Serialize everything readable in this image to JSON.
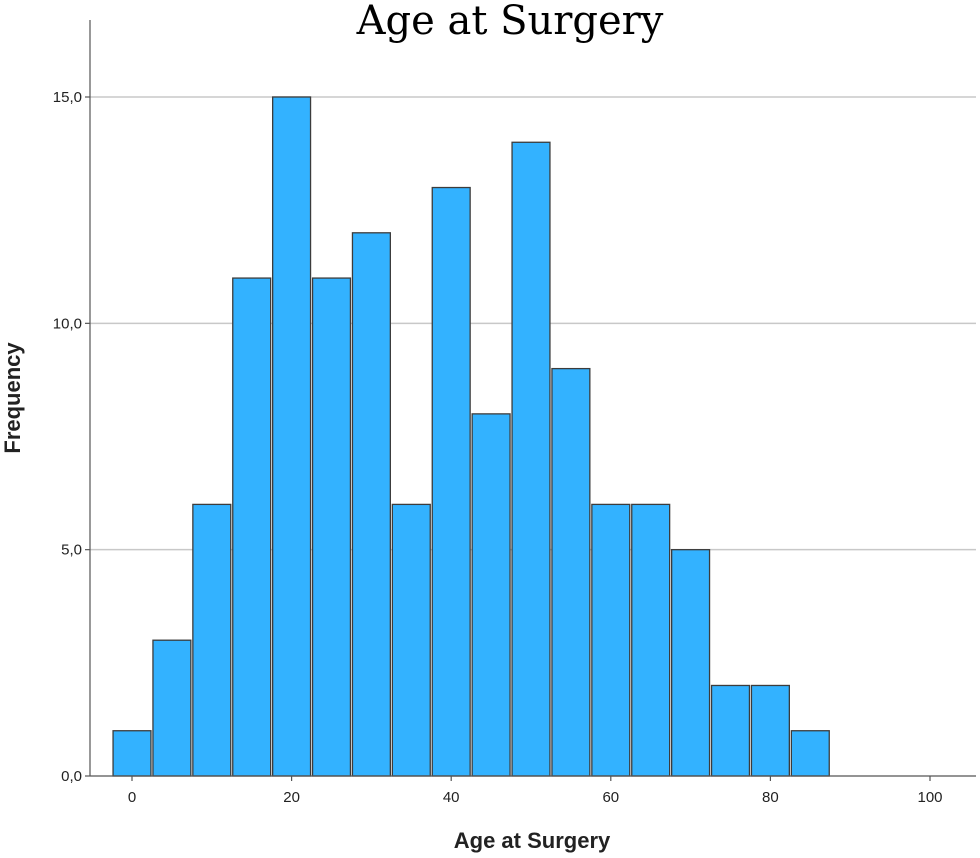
{
  "chart_data": {
    "type": "bar",
    "title": "Age at Surgery",
    "xlabel": "Age at Surgery",
    "ylabel": "Frequency",
    "bin_width": 5,
    "bins": [
      {
        "start": -2.5,
        "end": 2.5,
        "value": 1
      },
      {
        "start": 2.5,
        "end": 7.5,
        "value": 3
      },
      {
        "start": 7.5,
        "end": 12.5,
        "value": 6
      },
      {
        "start": 12.5,
        "end": 17.5,
        "value": 11
      },
      {
        "start": 17.5,
        "end": 22.5,
        "value": 15
      },
      {
        "start": 22.5,
        "end": 27.5,
        "value": 11
      },
      {
        "start": 27.5,
        "end": 32.5,
        "value": 12
      },
      {
        "start": 32.5,
        "end": 37.5,
        "value": 6
      },
      {
        "start": 37.5,
        "end": 42.5,
        "value": 13
      },
      {
        "start": 42.5,
        "end": 47.5,
        "value": 8
      },
      {
        "start": 47.5,
        "end": 52.5,
        "value": 14
      },
      {
        "start": 52.5,
        "end": 57.5,
        "value": 9
      },
      {
        "start": 57.5,
        "end": 62.5,
        "value": 6
      },
      {
        "start": 62.5,
        "end": 67.5,
        "value": 6
      },
      {
        "start": 67.5,
        "end": 72.5,
        "value": 5
      },
      {
        "start": 72.5,
        "end": 77.5,
        "value": 2
      },
      {
        "start": 77.5,
        "end": 82.5,
        "value": 2
      },
      {
        "start": 82.5,
        "end": 87.5,
        "value": 1
      }
    ],
    "xlim": [
      -5,
      105
    ],
    "ylim": [
      0,
      15.5
    ],
    "xticks": [
      0,
      20,
      40,
      60,
      80,
      100
    ],
    "xtick_labels": [
      "0",
      "20",
      "40",
      "60",
      "80",
      "100"
    ],
    "yticks": [
      0,
      5,
      10,
      15
    ],
    "ytick_labels": [
      "0,0",
      "5,0",
      "10,0",
      "15,0"
    ],
    "grid": "horizontal",
    "bar_color": "#33b2ff",
    "bar_edge_color": "#3c3c3c",
    "grid_color": "#c8c8c8"
  }
}
